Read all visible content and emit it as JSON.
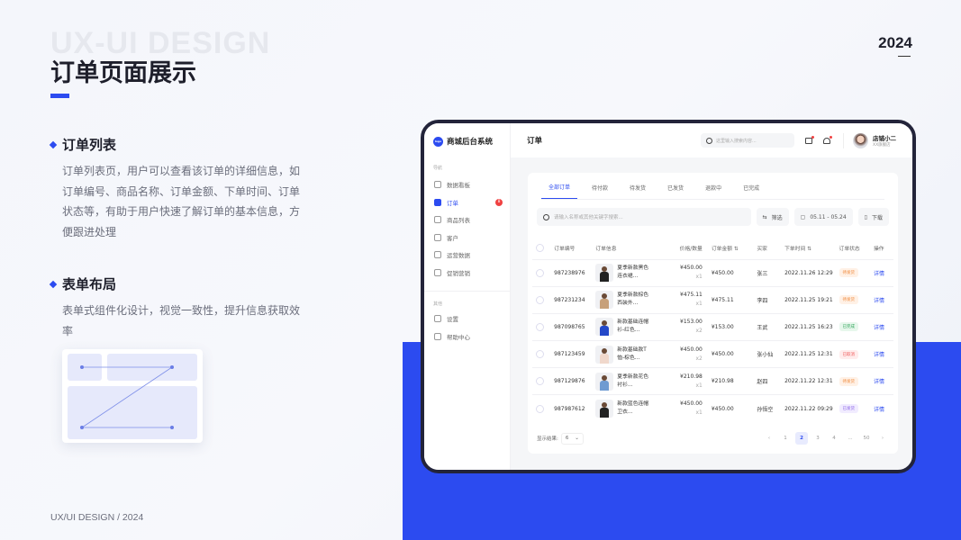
{
  "slide": {
    "watermark": "UX-UI DESIGN",
    "title": "订单页面展示",
    "year": "2024",
    "footer": "UX/UI DESIGN / 2024",
    "sections": [
      {
        "heading": "订单列表",
        "body": "订单列表页，用户可以查看该订单的详细信息，如订单编号、商品名称、订单金额、下单时间、订单状态等，有助于用户快速了解订单的基本信息，方便跟进处理"
      },
      {
        "heading": "表单布局",
        "body": "表单式组件化设计，视觉一致性，提升信息获取效率"
      }
    ]
  },
  "colors": {
    "accent": "#2c4bf0",
    "pending": "#fff1e6",
    "done": "#e7f7ec",
    "cancel": "#ffecec",
    "shipped": "#f1ecff"
  },
  "app": {
    "logo_text": "logo",
    "name": "商城后台系统",
    "page_title": "订单",
    "search_placeholder": "这里输入搜索内容...",
    "user": {
      "name": "店铺小二",
      "sub": "XX旗舰店"
    },
    "nav_caption": "导航",
    "other_caption": "其他",
    "nav": [
      {
        "label": "数据看板"
      },
      {
        "label": "订单",
        "badge": "8",
        "active": true
      },
      {
        "label": "商品列表"
      },
      {
        "label": "客户"
      },
      {
        "label": "运营数据"
      },
      {
        "label": "促销营销"
      }
    ],
    "other": [
      {
        "label": "设置"
      },
      {
        "label": "帮助中心"
      }
    ],
    "tabs": [
      "全部订单",
      "待付款",
      "待发货",
      "已发货",
      "退款中",
      "已完成"
    ],
    "filter_placeholder": "请输入名称或其他关键字搜索...",
    "filter_btn": "筛选",
    "date_range": "05.11 - 05.24",
    "download_btn": "下载",
    "columns": [
      "订单编号",
      "订单信息",
      "价格/数量",
      "订单金额 ⇅",
      "买家",
      "下单时间 ⇅",
      "订单状态",
      "操作"
    ],
    "rows": [
      {
        "id": "987238976",
        "name": "夏季新款黑色连衣裙…",
        "price": "¥450.00",
        "qty": "x1",
        "amount": "¥450.00",
        "buyer": "张三",
        "time": "2022.11.26  12:29",
        "status": "待发货",
        "action": "详情"
      },
      {
        "id": "987231234",
        "name": "夏季新款棕色西装外…",
        "price": "¥475.11",
        "qty": "x1",
        "amount": "¥475.11",
        "buyer": "李四",
        "time": "2022.11.25  19:21",
        "status": "待发货",
        "action": "详情"
      },
      {
        "id": "987098765",
        "name": "新款基础连帽衫-红色…",
        "price": "¥153.00",
        "qty": "x2",
        "amount": "¥153.00",
        "buyer": "王武",
        "time": "2022.11.25  16:23",
        "status": "已完成",
        "action": "详情"
      },
      {
        "id": "987123459",
        "name": "新款基础款T恤-棕色…",
        "price": "¥450.00",
        "qty": "x2",
        "amount": "¥450.00",
        "buyer": "张小仙",
        "time": "2022.11.25  12:31",
        "status": "已取消",
        "action": "详情"
      },
      {
        "id": "987129876",
        "name": "夏季新款花色衬衫…",
        "price": "¥210.98",
        "qty": "x1",
        "amount": "¥210.98",
        "buyer": "赵四",
        "time": "2022.11.22  12:31",
        "status": "待发货",
        "action": "详情"
      },
      {
        "id": "987987612",
        "name": "新款蓝色连帽卫衣…",
        "price": "¥450.00",
        "qty": "x1",
        "amount": "¥450.00",
        "buyer": "孙悟空",
        "time": "2022.11.22  09:29",
        "status": "已发货",
        "action": "详情"
      }
    ],
    "page_size_label": "显示结果:",
    "page_size": "6",
    "pages": [
      "1",
      "2",
      "3",
      "4",
      "...",
      "50"
    ],
    "current_page": "2"
  }
}
